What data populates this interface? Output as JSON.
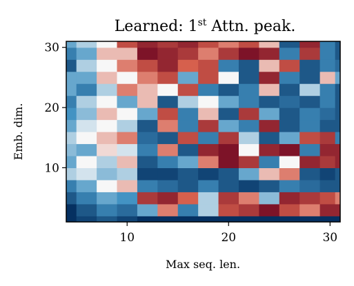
{
  "chart_data": {
    "type": "heatmap",
    "title_main": "Learned: 1",
    "title_sup": "st",
    "title_rest": " Attn. peak.",
    "xlabel": "Max seq. len.",
    "ylabel": "Emb. dim.",
    "xlim": [
      4,
      31
    ],
    "ylim": [
      1,
      31
    ],
    "x_ticks": [
      10,
      20,
      30
    ],
    "y_ticks": [
      10,
      20,
      30
    ],
    "colormap": "RdBu_r",
    "colors": {
      "low": "#053061",
      "mid": "#f7f7f7",
      "high": "#67001f"
    },
    "x": [
      4,
      6,
      8,
      10,
      12,
      14,
      16,
      18,
      20,
      22,
      24,
      26,
      28,
      30,
      31
    ],
    "y": [
      1,
      3,
      5,
      7,
      9,
      11,
      13,
      15,
      17,
      19,
      21,
      23,
      25,
      27,
      29,
      31
    ],
    "z": [
      [
        0.0,
        0.05,
        0.1,
        0.05,
        0.0,
        0.0,
        0.0,
        0.0,
        0.0,
        0.0,
        0.0,
        0.0,
        0.0,
        0.0,
        0.0
      ],
      [
        0.0,
        0.1,
        0.2,
        0.15,
        0.3,
        0.7,
        0.2,
        0.4,
        0.8,
        0.85,
        0.95,
        0.8,
        0.7,
        0.9,
        0.9
      ],
      [
        0.1,
        0.2,
        0.3,
        0.25,
        0.85,
        0.9,
        0.75,
        0.4,
        0.85,
        0.7,
        0.35,
        0.9,
        0.85,
        0.8,
        0.7
      ],
      [
        0.2,
        0.3,
        0.5,
        0.6,
        0.2,
        0.15,
        0.1,
        0.2,
        0.1,
        0.05,
        0.1,
        0.2,
        0.15,
        0.1,
        0.1
      ],
      [
        0.4,
        0.45,
        0.35,
        0.4,
        0.05,
        0.05,
        0.1,
        0.05,
        0.1,
        0.3,
        0.6,
        0.7,
        0.1,
        0.05,
        0.1
      ],
      [
        0.3,
        0.5,
        0.4,
        0.6,
        0.1,
        0.2,
        0.3,
        0.7,
        0.95,
        0.85,
        0.2,
        0.5,
        0.9,
        0.85,
        0.9
      ],
      [
        0.35,
        0.3,
        0.55,
        0.45,
        0.2,
        0.7,
        0.1,
        0.9,
        0.95,
        0.5,
        0.9,
        0.95,
        0.2,
        0.9,
        0.9
      ],
      [
        0.4,
        0.5,
        0.6,
        0.7,
        0.15,
        0.1,
        0.8,
        0.2,
        0.85,
        0.4,
        0.1,
        0.3,
        0.8,
        0.85,
        0.2
      ],
      [
        0.3,
        0.45,
        0.5,
        0.4,
        0.1,
        0.7,
        0.2,
        0.85,
        0.3,
        0.2,
        0.9,
        0.1,
        0.2,
        0.1,
        0.1
      ],
      [
        0.25,
        0.35,
        0.6,
        0.5,
        0.3,
        0.8,
        0.2,
        0.6,
        0.1,
        0.85,
        0.3,
        0.1,
        0.2,
        0.15,
        0.1
      ],
      [
        0.2,
        0.4,
        0.5,
        0.3,
        0.6,
        0.1,
        0.4,
        0.5,
        0.3,
        0.2,
        0.1,
        0.15,
        0.1,
        0.2,
        0.1
      ],
      [
        0.3,
        0.2,
        0.4,
        0.7,
        0.6,
        0.5,
        0.8,
        0.2,
        0.1,
        0.2,
        0.6,
        0.1,
        0.4,
        0.2,
        0.1
      ],
      [
        0.3,
        0.3,
        0.6,
        0.5,
        0.7,
        0.8,
        0.3,
        0.8,
        0.5,
        0.1,
        0.9,
        0.2,
        0.1,
        0.6,
        0.3
      ],
      [
        0.1,
        0.4,
        0.5,
        0.7,
        0.8,
        0.9,
        0.75,
        0.8,
        0.2,
        0.1,
        0.6,
        0.8,
        0.1,
        0.2,
        0.15
      ],
      [
        0.2,
        0.3,
        0.6,
        0.6,
        0.95,
        0.9,
        0.85,
        0.7,
        0.85,
        0.95,
        0.9,
        0.2,
        0.85,
        0.2,
        0.1
      ],
      [
        0.3,
        0.4,
        0.5,
        0.8,
        0.9,
        0.85,
        0.9,
        0.8,
        0.7,
        0.8,
        0.6,
        0.1,
        0.9,
        0.2,
        0.1
      ]
    ]
  }
}
